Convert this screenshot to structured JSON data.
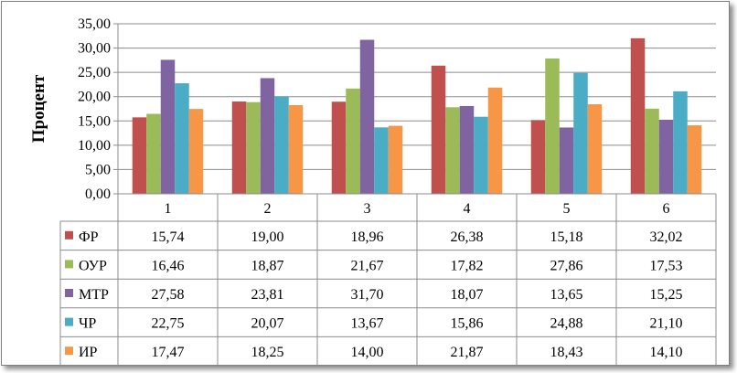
{
  "chart_data": {
    "type": "bar",
    "ylabel": "Процент",
    "xlabel": "",
    "title": "",
    "categories": [
      "1",
      "2",
      "3",
      "4",
      "5",
      "6"
    ],
    "ylim": [
      0,
      35
    ],
    "y_ticks": [
      "0,00",
      "5,00",
      "10,00",
      "15,00",
      "20,00",
      "25,00",
      "30,00",
      "35,00"
    ],
    "grid": "horizontal",
    "legend": "data-table-below",
    "series": [
      {
        "name": "ФР",
        "color": "#c0504d",
        "values": [
          15.74,
          19.0,
          18.96,
          26.38,
          15.18,
          32.02
        ],
        "labels": [
          "15,74",
          "19,00",
          "18,96",
          "26,38",
          "15,18",
          "32,02"
        ]
      },
      {
        "name": "ОУР",
        "color": "#9bbb59",
        "values": [
          16.46,
          18.87,
          21.67,
          17.82,
          27.86,
          17.53
        ],
        "labels": [
          "16,46",
          "18,87",
          "21,67",
          "17,82",
          "27,86",
          "17,53"
        ]
      },
      {
        "name": "МТР",
        "color": "#8064a2",
        "values": [
          27.58,
          23.81,
          31.7,
          18.07,
          13.65,
          15.25
        ],
        "labels": [
          "27,58",
          "23,81",
          "31,70",
          "18,07",
          "13,65",
          "15,25"
        ]
      },
      {
        "name": "ЧР",
        "color": "#4bacc6",
        "values": [
          22.75,
          20.07,
          13.67,
          15.86,
          24.88,
          21.1
        ],
        "labels": [
          "22,75",
          "20,07",
          "13,67",
          "15,86",
          "24,88",
          "21,10"
        ]
      },
      {
        "name": "ИР",
        "color": "#f79646",
        "values": [
          17.47,
          18.25,
          14.0,
          21.87,
          18.43,
          14.1
        ],
        "labels": [
          "17,47",
          "18,25",
          "14,00",
          "21,87",
          "18,43",
          "14,10"
        ]
      }
    ]
  }
}
